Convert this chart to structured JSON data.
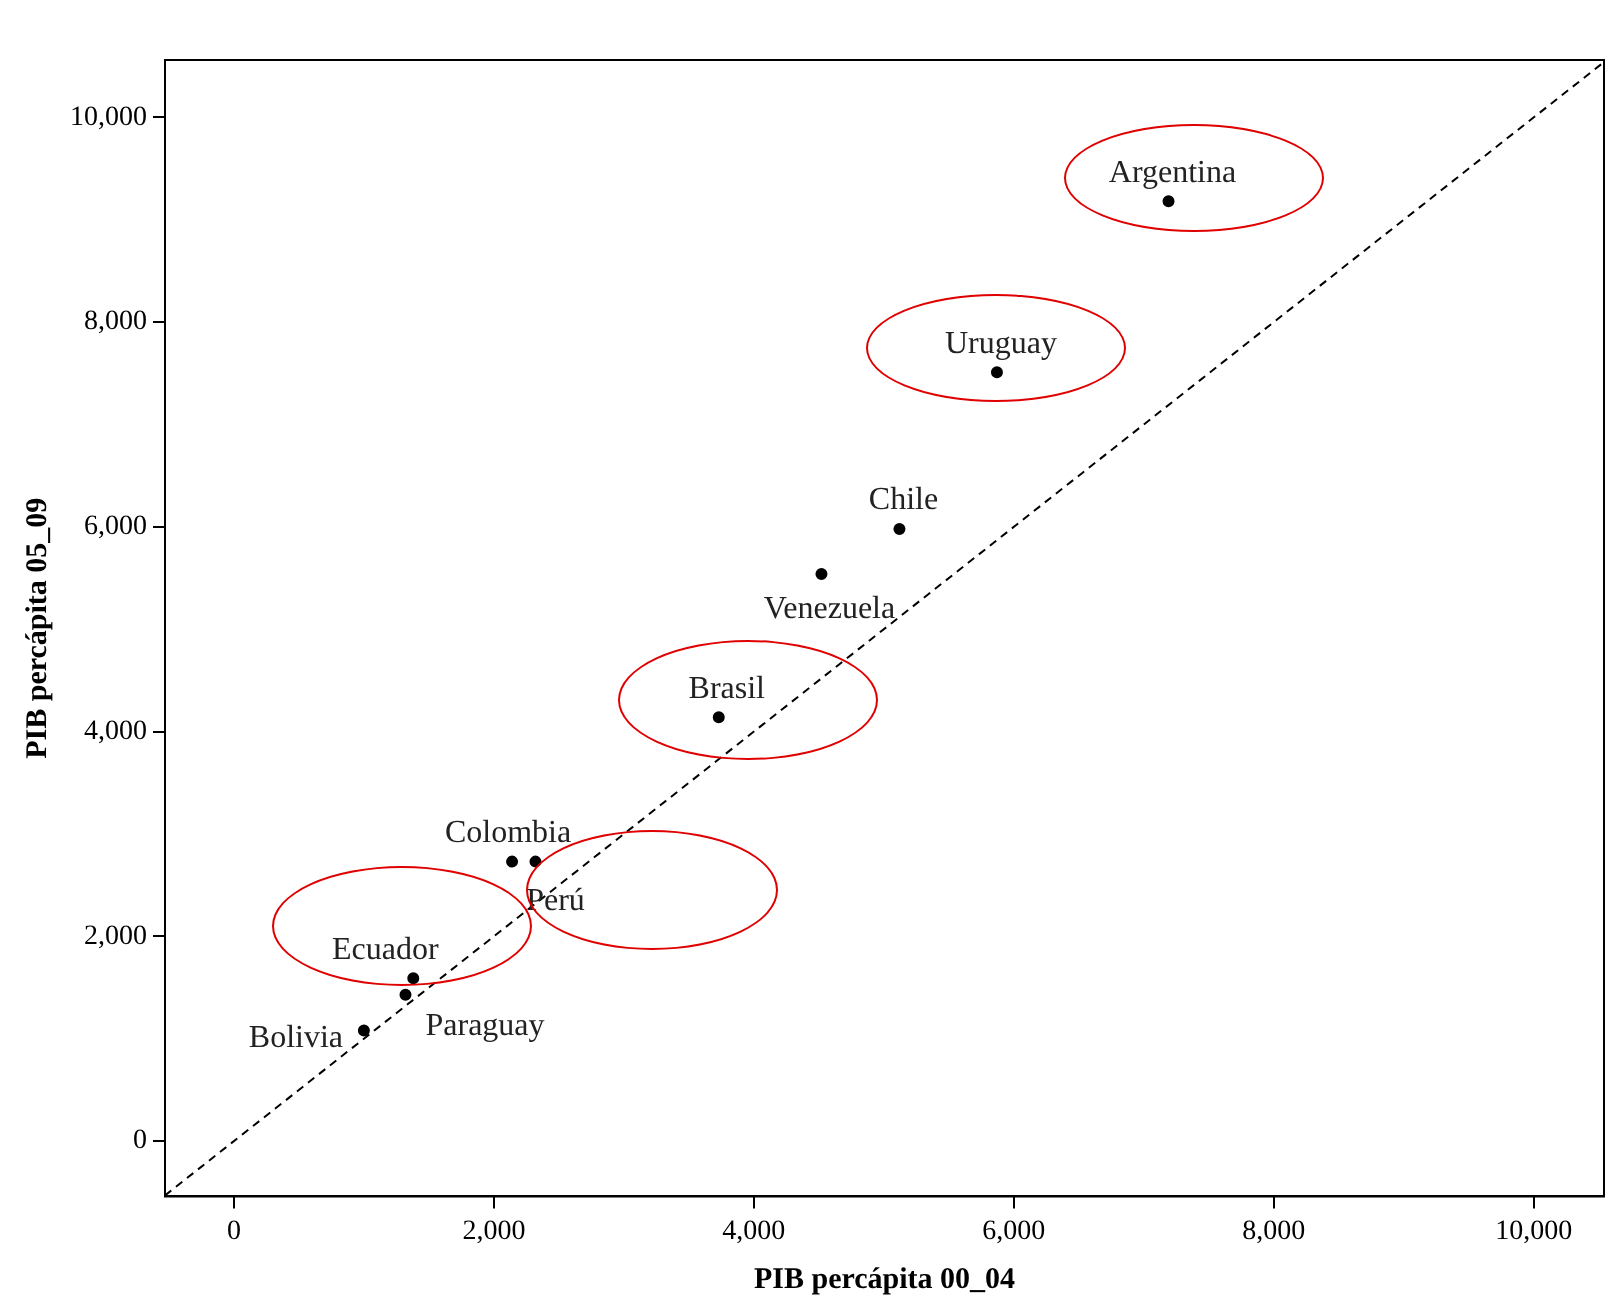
{
  "chart_data": {
    "type": "scatter",
    "xlabel": "PIB percápita 00_04",
    "ylabel": "PIB percápita 05_09",
    "xlim": [
      -530,
      10540
    ],
    "ylim": [
      -540,
      10560
    ],
    "xticks": [
      {
        "value": 0,
        "label": "0"
      },
      {
        "value": 2000,
        "label": "2,000"
      },
      {
        "value": 4000,
        "label": "4,000"
      },
      {
        "value": 6000,
        "label": "6,000"
      },
      {
        "value": 8000,
        "label": "8,000"
      },
      {
        "value": 10000,
        "label": "10,000"
      }
    ],
    "yticks": [
      {
        "value": 0,
        "label": "0"
      },
      {
        "value": 2000,
        "label": "2,000"
      },
      {
        "value": 4000,
        "label": "4,000"
      },
      {
        "value": 6000,
        "label": "6,000"
      },
      {
        "value": 8000,
        "label": "8,000"
      },
      {
        "value": 10000,
        "label": "10,000"
      }
    ],
    "grid": false,
    "legend": false,
    "marker": "circle",
    "series": [
      {
        "color": "#000000",
        "x": [
          7190,
          5870,
          5120,
          4520,
          3730,
          2140,
          2320,
          1380,
          1320,
          1000
        ],
        "values": [
          9180,
          7510,
          5980,
          5540,
          4140,
          2730,
          2730,
          1590,
          1430,
          1080
        ]
      },
      {
        "type": "line",
        "color": "#000000",
        "line_style": "dashed",
        "marker": "none",
        "x": [
          -530,
          10540
        ],
        "values": [
          -530,
          10540
        ]
      }
    ],
    "annotations": [
      {
        "text": "Argentina",
        "x": 7190,
        "y": 9180
      },
      {
        "text": "Uruguay",
        "x": 5870,
        "y": 7510
      },
      {
        "text": "Chile",
        "x": 5120,
        "y": 5980
      },
      {
        "text": "Venezuela",
        "x": 4520,
        "y": 5540
      },
      {
        "text": "Brasil",
        "x": 3730,
        "y": 4140
      },
      {
        "text": "Colombia",
        "x": 2140,
        "y": 2730
      },
      {
        "text": "Perú",
        "x": 2320,
        "y": 2730
      },
      {
        "text": "Ecuador",
        "x": 1380,
        "y": 1590
      },
      {
        "text": "Paraguay",
        "x": 1320,
        "y": 1430
      },
      {
        "text": "Bolivia",
        "x": 1000,
        "y": 1080
      }
    ]
  }
}
